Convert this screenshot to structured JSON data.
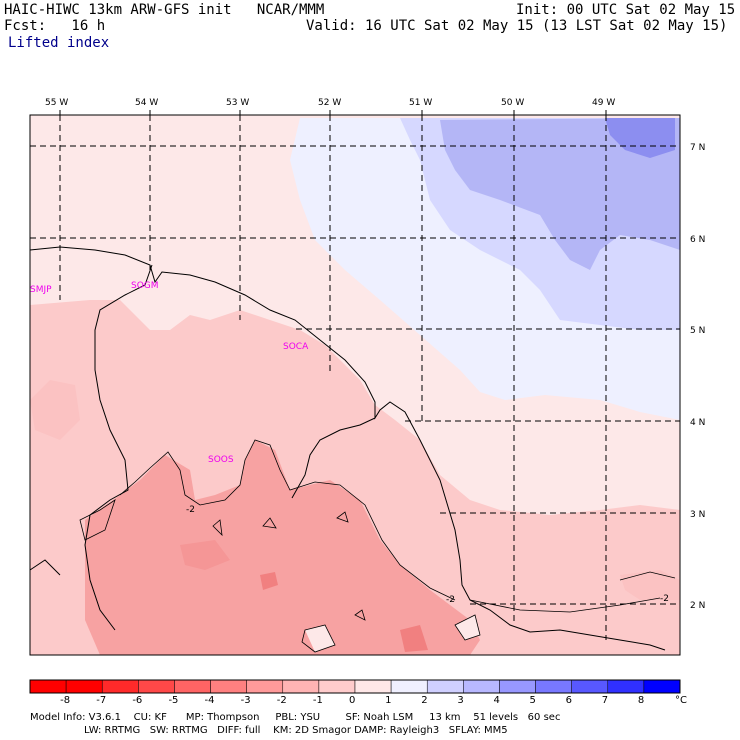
{
  "header": {
    "line1_left": "HAIC-HIWC 13km ARW-GFS init   NCAR/MMM",
    "line1_right": "Init: 00 UTC Sat 02 May 15",
    "line2_left": "Fcst:   16 h",
    "line2_right": "Valid: 16 UTC Sat 02 May 15 (13 LST Sat 02 May 15)",
    "field": "Lifted index"
  },
  "map": {
    "lon_labels": [
      "55 W",
      "54 W",
      "53 W",
      "52 W",
      "51 W",
      "50 W",
      "49 W"
    ],
    "lat_labels": [
      "7 N",
      "6 N",
      "5 N",
      "4 N",
      "3 N",
      "2 N"
    ],
    "stations": [
      "SMJP",
      "SOGM",
      "SOCA",
      "SOOS"
    ],
    "contour_labels": [
      "-2",
      "-2",
      "-2"
    ]
  },
  "colorbar": {
    "labels": [
      "-8",
      "-7",
      "-6",
      "-5",
      "-4",
      "-3",
      "-2",
      "-1",
      "0",
      "1",
      "2",
      "3",
      "4",
      "5",
      "6",
      "7",
      "8"
    ],
    "unit": "°C",
    "colors": [
      "#ff0000",
      "#ff2a2a",
      "#ff4848",
      "#ff6464",
      "#ff8080",
      "#ff9a9a",
      "#ffb4b4",
      "#ffcccc",
      "#ffe8e8",
      "#f0f0ff",
      "#d0d0ff",
      "#b8b8ff",
      "#9898ff",
      "#7878ff",
      "#5858ff",
      "#3030ff",
      "#0000ff"
    ]
  },
  "footer": {
    "line1": "Model Info: V3.6.1    CU: KF      MP: Thompson     PBL: YSU        SF: Noah LSM     13 km    51 levels   60 sec",
    "line2": "                 LW: RRTMG   SW: RRTMG   DIFF: full    KM: 2D Smagor DAMP: Rayleigh3   SFLAY: MM5"
  }
}
